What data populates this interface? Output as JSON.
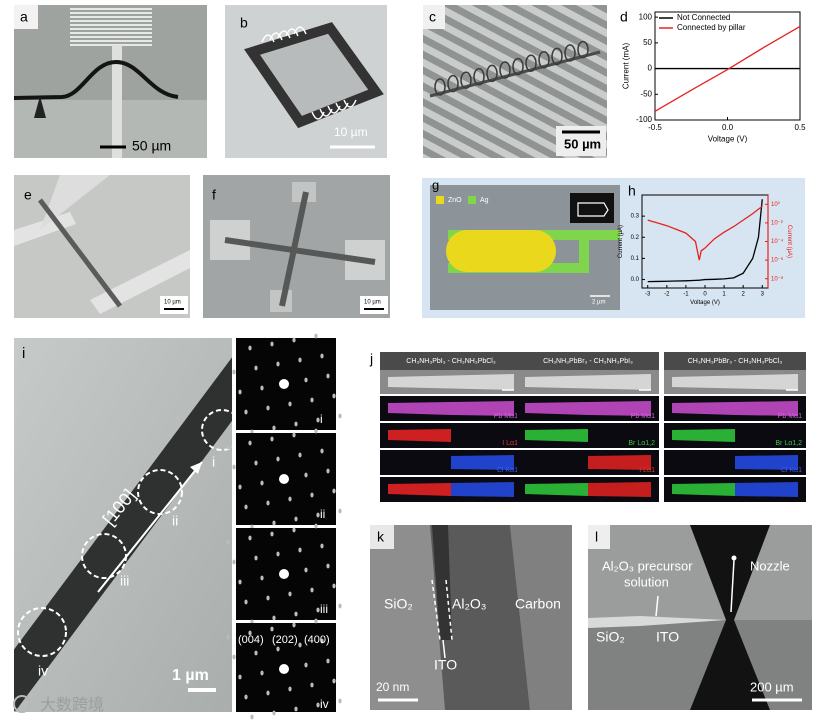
{
  "panels": {
    "a": {
      "label": "a",
      "scale_bar": "50 µm"
    },
    "b": {
      "label": "b",
      "scale_bar": "10 µm"
    },
    "c": {
      "label": "c",
      "scale_bar": "50 µm"
    },
    "e": {
      "label": "e",
      "scale_bar": "10 µm"
    },
    "f": {
      "label": "f",
      "scale_bar": "10 µm"
    },
    "g": {
      "label": "g",
      "legend": [
        "ZnO",
        "Ag"
      ],
      "scale_bar": "2 µm"
    },
    "i": {
      "label": "i",
      "direction": "[100]",
      "regions": [
        "i",
        "ii",
        "iii",
        "iv"
      ],
      "scale_bar": "1 µm",
      "diffraction_labels": [
        "i",
        "ii",
        "iii",
        "iv"
      ],
      "indices": [
        "(004)",
        "(202)",
        "(400)"
      ]
    },
    "j": {
      "label": "j",
      "columns": [
        {
          "title": "CH₃NH₃PbI₃ - CH₃NH₃PbCl₃",
          "maps": [
            "Pb Mα1",
            "I Lα1",
            "Cl Kα1"
          ]
        },
        {
          "title": "CH₃NH₃PbBr₃ - CH₃NH₃PbI₃",
          "maps": [
            "Pb Mα1",
            "Br Lα1,2",
            "I Lα1"
          ]
        },
        {
          "title": "CH₃NH₃PbBr₃ - CH₃NH₃PbCl₃",
          "maps": [
            "Pb Mα1",
            "Br Lα1,2",
            "Cl Kα1"
          ]
        }
      ]
    },
    "k": {
      "label": "k",
      "regions": [
        "SiO₂",
        "Al₂O₃",
        "Carbon"
      ],
      "electrode": "ITO",
      "scale_bar": "20 nm"
    },
    "l": {
      "label": "l",
      "precursor": [
        "Al₂O₃ precursor",
        "solution"
      ],
      "nozzle": "Nozzle",
      "regions": [
        "SiO₂",
        "ITO"
      ],
      "scale_bar": "200 µm"
    }
  },
  "chart_data": [
    {
      "type": "line",
      "label": "d",
      "xlabel": "Voltage (V)",
      "ylabel": "Current (mA)",
      "x": [
        -0.5,
        -0.25,
        0,
        0.25,
        0.5
      ],
      "series": [
        {
          "name": "Not Connected",
          "color": "#000000",
          "values": [
            0,
            0,
            0,
            0,
            0
          ]
        },
        {
          "name": "Connected by pillar",
          "color": "#e8221c",
          "values": [
            -83,
            -42,
            -2,
            41,
            82
          ]
        }
      ],
      "xlim": [
        -0.5,
        0.5
      ],
      "xticks": [
        -0.5,
        {
          "value": 0,
          "label": "0.0"
        },
        0.5
      ],
      "ylim": [
        -100,
        110
      ],
      "yticks": [
        -100,
        -50,
        0,
        50,
        100
      ],
      "legend": "upper left"
    },
    {
      "type": "line",
      "label": "h",
      "xlabel": "Voltage (V)",
      "ylabel": "Current (µA)",
      "y2label": "Current (µA)",
      "x": [
        -3,
        -2.5,
        -2,
        -1.5,
        -1,
        -0.5,
        -0.3,
        -0.2,
        0,
        0.5,
        1,
        1.5,
        2,
        2.5,
        2.8,
        3
      ],
      "series": [
        {
          "color": "#000000",
          "values": [
            -0.01,
            -0.009,
            -0.008,
            -0.007,
            -0.006,
            -0.004,
            -0.003,
            -0.002,
            0,
            0.001,
            0.003,
            0.008,
            0.03,
            0.1,
            0.2,
            0.38
          ]
        },
        {
          "color": "#e8221c",
          "axis": "y2",
          "values": [
            0.02,
            0.01,
            0.005,
            0.002,
            0.0008,
            0.0001,
            1e-06,
            1e-05,
            2e-05,
            0.0002,
            0.001,
            0.004,
            0.02,
            0.1,
            0.3,
            0.6
          ]
        }
      ],
      "xlim": [
        -3.3,
        3.3
      ],
      "xticks": [
        -3,
        -2,
        -1,
        0,
        1,
        2,
        3
      ],
      "ylim": [
        -0.04,
        0.4
      ],
      "yticks": [
        {
          "value": 0,
          "label": "0.0"
        },
        0.1,
        0.2,
        0.3
      ],
      "y2lim": [
        1e-09,
        10
      ],
      "y2log": true,
      "y2ticks": [
        {
          "value": 1,
          "label": "10⁰"
        },
        {
          "value": 0.01,
          "label": "10⁻²"
        },
        {
          "value": 0.0001,
          "label": "10⁻⁴"
        },
        {
          "value": 1e-06,
          "label": "10⁻⁶"
        },
        {
          "value": 1e-08,
          "label": "10⁻⁸"
        }
      ]
    }
  ],
  "watermark": "大数跨境"
}
